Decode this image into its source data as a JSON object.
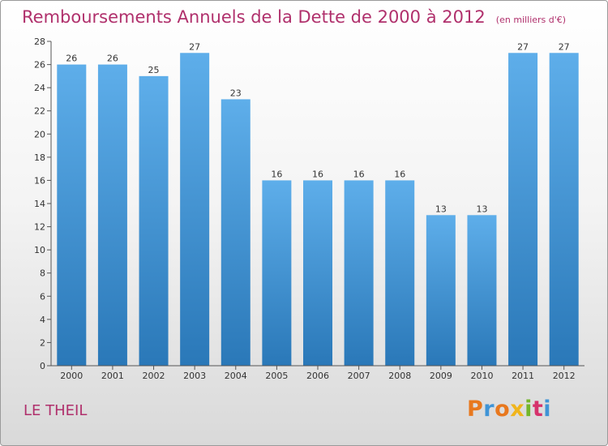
{
  "header": {
    "title": "Remboursements Annuels de la Dette de 2000 à 2012",
    "unit": "(en milliers d'€)"
  },
  "footer": {
    "commune": "LE THEIL",
    "logo_text": "Proxiti",
    "logo_colors": [
      "#e8781e",
      "#3f94d6",
      "#e8781e",
      "#f0b51c",
      "#74b62b",
      "#d6336c",
      "#3f94d6"
    ]
  },
  "colors": {
    "title": "#b0306c",
    "bar_top": "#5eaeea",
    "bar_bottom": "#2a78b8"
  },
  "chart_data": {
    "type": "bar",
    "title": "Remboursements Annuels de la Dette de 2000 à 2012",
    "subtitle": "(en milliers d'€)",
    "xlabel": "",
    "ylabel": "",
    "categories": [
      "2000",
      "2001",
      "2002",
      "2003",
      "2004",
      "2005",
      "2006",
      "2007",
      "2008",
      "2009",
      "2010",
      "2011",
      "2012"
    ],
    "values": [
      26,
      26,
      25,
      27,
      23,
      16,
      16,
      16,
      16,
      13,
      13,
      27,
      27
    ],
    "ylim": [
      0,
      28
    ],
    "yticks": [
      0,
      2,
      4,
      6,
      8,
      10,
      12,
      14,
      16,
      18,
      20,
      22,
      24,
      26,
      28
    ],
    "grid": false,
    "data_labels": true
  }
}
